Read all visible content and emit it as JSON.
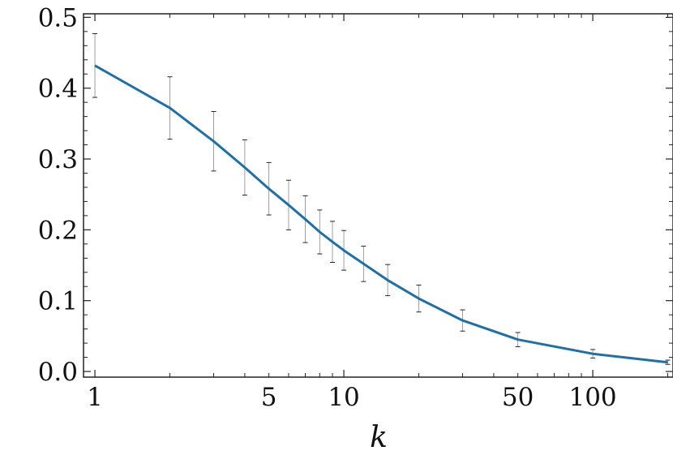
{
  "chart_data": {
    "type": "line",
    "xlabel": "k",
    "ylabel": "",
    "xscale": "log",
    "xlim": [
      0.9,
      210
    ],
    "ylim": [
      -0.008,
      0.505
    ],
    "xticks": [
      1,
      5,
      10,
      50,
      100
    ],
    "xtick_labels": [
      "1",
      "5",
      "10",
      "50",
      "100"
    ],
    "yticks": [
      0.0,
      0.1,
      0.2,
      0.3,
      0.4,
      0.5
    ],
    "ytick_labels": [
      "0.0",
      "0.1",
      "0.2",
      "0.3",
      "0.4",
      "0.5"
    ],
    "grid": false,
    "line_color": "#1f6fa8",
    "errorbar_color": "#888888",
    "series": [
      {
        "x": [
          1,
          2,
          3,
          4,
          5,
          6,
          7,
          8,
          9,
          10,
          12,
          15,
          20,
          30,
          50,
          100,
          200
        ],
        "y": [
          0.432,
          0.372,
          0.325,
          0.288,
          0.258,
          0.235,
          0.215,
          0.197,
          0.183,
          0.171,
          0.152,
          0.129,
          0.103,
          0.072,
          0.045,
          0.025,
          0.013
        ],
        "err": [
          0.045,
          0.044,
          0.042,
          0.039,
          0.037,
          0.035,
          0.033,
          0.031,
          0.029,
          0.028,
          0.025,
          0.022,
          0.019,
          0.015,
          0.01,
          0.006,
          0.003
        ]
      }
    ]
  }
}
